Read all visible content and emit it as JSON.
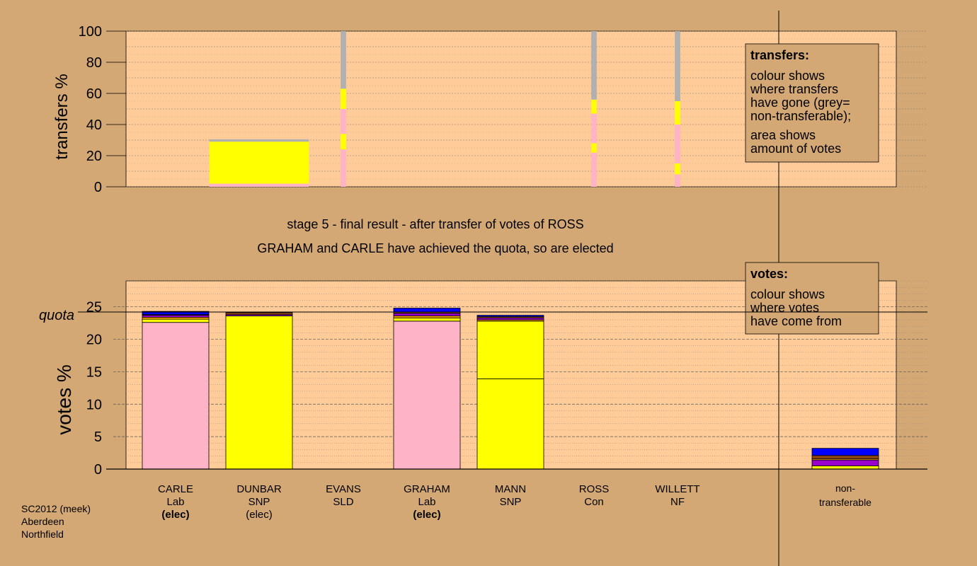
{
  "colors": {
    "background": "#d4a875",
    "plot_fill": "#ffcc99",
    "lab": "#ffb3c6",
    "snp": "#ffff00",
    "nontransferable": "#b0b0b0",
    "purple": "#9900cc",
    "blue": "#0000ff",
    "brown": "#8b4513",
    "orange": "#ffa500"
  },
  "chart_data": [
    {
      "type": "bar",
      "id": "transfers",
      "ylabel": "transfers %",
      "ylim": [
        0,
        100
      ],
      "yticks": [
        "0",
        "20",
        "40",
        "60",
        "80",
        "100"
      ],
      "legend": {
        "title": "transfers:",
        "lines": [
          "colour shows",
          "where transfers",
          "have gone (grey=",
          "non-transferable);",
          "area shows",
          "amount of votes"
        ]
      },
      "columns": [
        {
          "candidate": "DUNBAR",
          "width_pct": 27.5,
          "segments": [
            {
              "color": "#ffb3c6",
              "value": 2
            },
            {
              "color": "#ffff00",
              "value": 27
            },
            {
              "color": "#b0b0b0",
              "value": 1.5
            }
          ]
        },
        {
          "candidate": "EVANS",
          "width_pct": 1.5,
          "segments": [
            {
              "color": "#ffb3c6",
              "value": 24
            },
            {
              "color": "#ffff00",
              "value": 10
            },
            {
              "color": "#ffb3c6",
              "value": 16
            },
            {
              "color": "#ffff00",
              "value": 13
            },
            {
              "color": "#b0b0b0",
              "value": 37
            }
          ]
        },
        {
          "candidate": "ROSS",
          "width_pct": 1.5,
          "segments": [
            {
              "color": "#ffb3c6",
              "value": 22
            },
            {
              "color": "#ffff00",
              "value": 6
            },
            {
              "color": "#ffb3c6",
              "value": 19
            },
            {
              "color": "#ffff00",
              "value": 9
            },
            {
              "color": "#b0b0b0",
              "value": 44
            }
          ]
        },
        {
          "candidate": "WILLETT",
          "width_pct": 1.5,
          "segments": [
            {
              "color": "#ffb3c6",
              "value": 8
            },
            {
              "color": "#ffff00",
              "value": 7
            },
            {
              "color": "#ffb3c6",
              "value": 25
            },
            {
              "color": "#ffff00",
              "value": 15
            },
            {
              "color": "#b0b0b0",
              "value": 45
            }
          ]
        }
      ]
    },
    {
      "type": "bar",
      "id": "votes",
      "ylabel": "votes %",
      "ylim": [
        0,
        29
      ],
      "yticks": [
        "0",
        "5",
        "10",
        "15",
        "20",
        "25"
      ],
      "quota": 24.2,
      "quota_label": "quota",
      "legend": {
        "title": "votes:",
        "lines": [
          "colour shows",
          "where votes",
          "have come from"
        ]
      },
      "candidates": [
        {
          "name": "CARLE",
          "party": "Lab",
          "status": "(elec)",
          "bold_status": true,
          "segments": [
            {
              "color": "#ffb3c6",
              "value": 22.6
            },
            {
              "color": "#ffff00",
              "value": 0.5
            },
            {
              "color": "#ffa500",
              "value": 0.3
            },
            {
              "color": "#9900cc",
              "value": 0.3
            },
            {
              "color": "#8b4513",
              "value": 0.1
            },
            {
              "color": "#0000ff",
              "value": 0.5
            }
          ]
        },
        {
          "name": "DUNBAR",
          "party": "SNP",
          "status": "(elec)",
          "bold_status": false,
          "segments": [
            {
              "color": "#ffff00",
              "value": 23.6
            },
            {
              "color": "#9900cc",
              "value": 0.2
            },
            {
              "color": "#8b4513",
              "value": 0.3
            }
          ]
        },
        {
          "name": "EVANS",
          "party": "SLD",
          "status": "",
          "bold_status": false,
          "segments": []
        },
        {
          "name": "GRAHAM",
          "party": "Lab",
          "status": "(elec)",
          "bold_status": true,
          "segments": [
            {
              "color": "#ffb3c6",
              "value": 22.8
            },
            {
              "color": "#ffff00",
              "value": 0.5
            },
            {
              "color": "#ffa500",
              "value": 0.3
            },
            {
              "color": "#9900cc",
              "value": 0.4
            },
            {
              "color": "#8b4513",
              "value": 0.2
            },
            {
              "color": "#0000ff",
              "value": 0.6
            }
          ]
        },
        {
          "name": "MANN",
          "party": "SNP",
          "status": "",
          "bold_status": false,
          "segments": [
            {
              "color": "#ffff00",
              "value": 13.9
            },
            {
              "color": "#ffff00",
              "value": 8.9
            },
            {
              "color": "#ffa500",
              "value": 0.2
            },
            {
              "color": "#9900cc",
              "value": 0.3
            },
            {
              "color": "#8b4513",
              "value": 0.2
            },
            {
              "color": "#0000ff",
              "value": 0.2
            }
          ]
        },
        {
          "name": "ROSS",
          "party": "Con",
          "status": "",
          "bold_status": false,
          "segments": []
        },
        {
          "name": "WILLETT",
          "party": "NF",
          "status": "",
          "bold_status": false,
          "segments": []
        }
      ],
      "nontransferable": {
        "label_line1": "non-",
        "label_line2": "transferable",
        "segments": [
          {
            "color": "#ffff00",
            "value": 0.5
          },
          {
            "color": "#9900cc",
            "value": 0.9
          },
          {
            "color": "#ffa500",
            "value": 0.2
          },
          {
            "color": "#8b4513",
            "value": 0.5
          },
          {
            "color": "#0000ff",
            "value": 1.1
          }
        ]
      }
    }
  ],
  "stage_text": "stage 5 - final result - after transfer of votes of ROSS",
  "elected_text": "GRAHAM and CARLE have achieved the quota, so are elected",
  "footer": {
    "line1": "SC2012 (meek)",
    "line2": "Aberdeen",
    "line3": "Northfield"
  }
}
